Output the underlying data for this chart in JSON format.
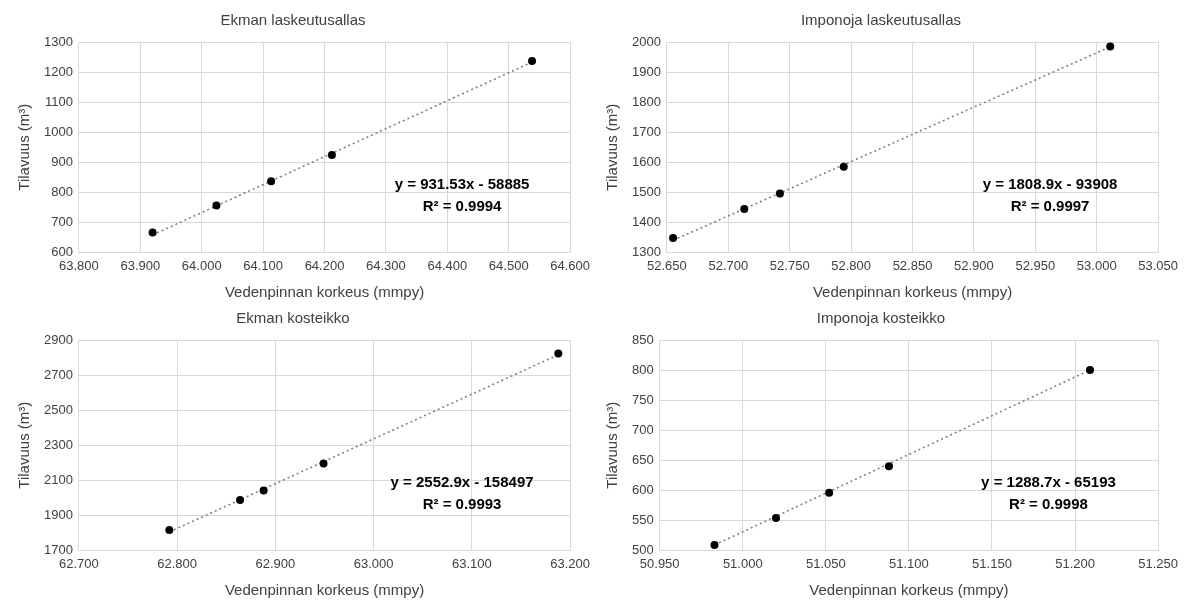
{
  "chart_data": [
    {
      "type": "scatter",
      "title": "Ekman laskeutusallas",
      "xlabel": "Vedenpinnan korkeus (mmpy)",
      "ylabel": "Tilavuus (m³)",
      "grid": true,
      "legend": false,
      "xlim": [
        63.8,
        64.6
      ],
      "xticks": [
        {
          "value": 63.8,
          "label": "63.800"
        },
        {
          "value": 63.9,
          "label": "63.900"
        },
        {
          "value": 64.0,
          "label": "64.000"
        },
        {
          "value": 64.1,
          "label": "64.100"
        },
        {
          "value": 64.2,
          "label": "64.200"
        },
        {
          "value": 64.3,
          "label": "64.300"
        },
        {
          "value": 64.4,
          "label": "64.400"
        },
        {
          "value": 64.5,
          "label": "64.500"
        },
        {
          "value": 64.6,
          "label": "64.600"
        }
      ],
      "ylim": [
        600,
        1300
      ],
      "yticks": [
        600,
        700,
        800,
        900,
        1000,
        1100,
        1200,
        1300
      ],
      "annotations": [
        "y = 931.53x - 58885",
        "R² = 0.9994"
      ],
      "series": [
        {
          "type": "scatter",
          "color": "#000000",
          "marker": "circle",
          "x": [
            63.92,
            64.024,
            64.113,
            64.212,
            64.538
          ],
          "values": [
            666,
            756,
            837,
            924,
            1237
          ]
        },
        {
          "type": "line",
          "color": "#808080",
          "marker": "none",
          "line_style": "dotted",
          "x": [
            63.92,
            64.538
          ],
          "values": [
            658,
            1233
          ]
        }
      ]
    },
    {
      "type": "scatter",
      "title": "Imponoja laskeutusallas",
      "xlabel": "Vedenpinnan korkeus (mmpy)",
      "ylabel": "Tilavuus (m³)",
      "grid": true,
      "legend": false,
      "xlim": [
        52.65,
        53.05
      ],
      "xticks": [
        {
          "value": 52.65,
          "label": "52.650"
        },
        {
          "value": 52.7,
          "label": "52.700"
        },
        {
          "value": 52.75,
          "label": "52.750"
        },
        {
          "value": 52.8,
          "label": "52.800"
        },
        {
          "value": 52.85,
          "label": "52.850"
        },
        {
          "value": 52.9,
          "label": "52.900"
        },
        {
          "value": 52.95,
          "label": "52.950"
        },
        {
          "value": 53.0,
          "label": "53.000"
        },
        {
          "value": 53.05,
          "label": "53.050"
        }
      ],
      "ylim": [
        1300,
        2000
      ],
      "yticks": [
        1300,
        1400,
        1500,
        1600,
        1700,
        1800,
        1900,
        2000
      ],
      "annotations": [
        "y = 1808.9x - 93908",
        "R² = 0.9997"
      ],
      "series": [
        {
          "type": "scatter",
          "color": "#000000",
          "marker": "circle",
          "x": [
            52.655,
            52.713,
            52.742,
            52.794,
            53.011
          ],
          "values": [
            1348,
            1444,
            1496,
            1585,
            1985
          ]
        },
        {
          "type": "line",
          "color": "#808080",
          "marker": "none",
          "line_style": "dotted",
          "x": [
            52.655,
            53.011
          ],
          "values": [
            1340,
            1984
          ]
        }
      ]
    },
    {
      "type": "scatter",
      "title": "Ekman kosteikko",
      "xlabel": "Vedenpinnan korkeus (mmpy)",
      "ylabel": "Tilavuus (m³)",
      "grid": true,
      "legend": false,
      "xlim": [
        62.7,
        63.2
      ],
      "xticks": [
        {
          "value": 62.7,
          "label": "62.700"
        },
        {
          "value": 62.8,
          "label": "62.800"
        },
        {
          "value": 62.9,
          "label": "62.900"
        },
        {
          "value": 63.0,
          "label": "63.000"
        },
        {
          "value": 63.1,
          "label": "63.100"
        },
        {
          "value": 63.2,
          "label": "63.200"
        }
      ],
      "ylim": [
        1700,
        2900
      ],
      "yticks": [
        1700,
        1900,
        2100,
        2300,
        2500,
        2700,
        2900
      ],
      "annotations": [
        "y = 2552.9x - 158497",
        "R² = 0.9993"
      ],
      "series": [
        {
          "type": "scatter",
          "color": "#000000",
          "marker": "circle",
          "x": [
            62.792,
            62.864,
            62.888,
            62.949,
            63.188
          ],
          "values": [
            1816,
            1988,
            2042,
            2196,
            2823
          ]
        },
        {
          "type": "line",
          "color": "#808080",
          "marker": "none",
          "line_style": "dotted",
          "x": [
            62.792,
            63.188
          ],
          "values": [
            1805,
            2816
          ]
        }
      ]
    },
    {
      "type": "scatter",
      "title": "Imponoja kosteikko",
      "xlabel": "Vedenpinnan korkeus (mmpy)",
      "ylabel": "Tilavuus (m³)",
      "grid": true,
      "legend": false,
      "xlim": [
        50.95,
        51.25
      ],
      "xticks": [
        {
          "value": 50.95,
          "label": "50.950"
        },
        {
          "value": 51.0,
          "label": "51.000"
        },
        {
          "value": 51.05,
          "label": "51.050"
        },
        {
          "value": 51.1,
          "label": "51.100"
        },
        {
          "value": 51.15,
          "label": "51.150"
        },
        {
          "value": 51.2,
          "label": "51.200"
        },
        {
          "value": 51.25,
          "label": "51.250"
        }
      ],
      "ylim": [
        500,
        850
      ],
      "yticks": [
        500,
        550,
        600,
        650,
        700,
        750,
        800,
        850
      ],
      "annotations": [
        "y = 1288.7x - 65193",
        "R² = 0.9998"
      ],
      "series": [
        {
          "type": "scatter",
          "color": "#000000",
          "marker": "circle",
          "x": [
            50.983,
            51.02,
            51.052,
            51.088,
            51.209
          ],
          "values": [
            509,
            554,
            596,
            640,
            800
          ]
        },
        {
          "type": "line",
          "color": "#808080",
          "marker": "none",
          "line_style": "dotted",
          "x": [
            50.983,
            51.209
          ],
          "values": [
            509,
            800
          ]
        }
      ]
    }
  ]
}
